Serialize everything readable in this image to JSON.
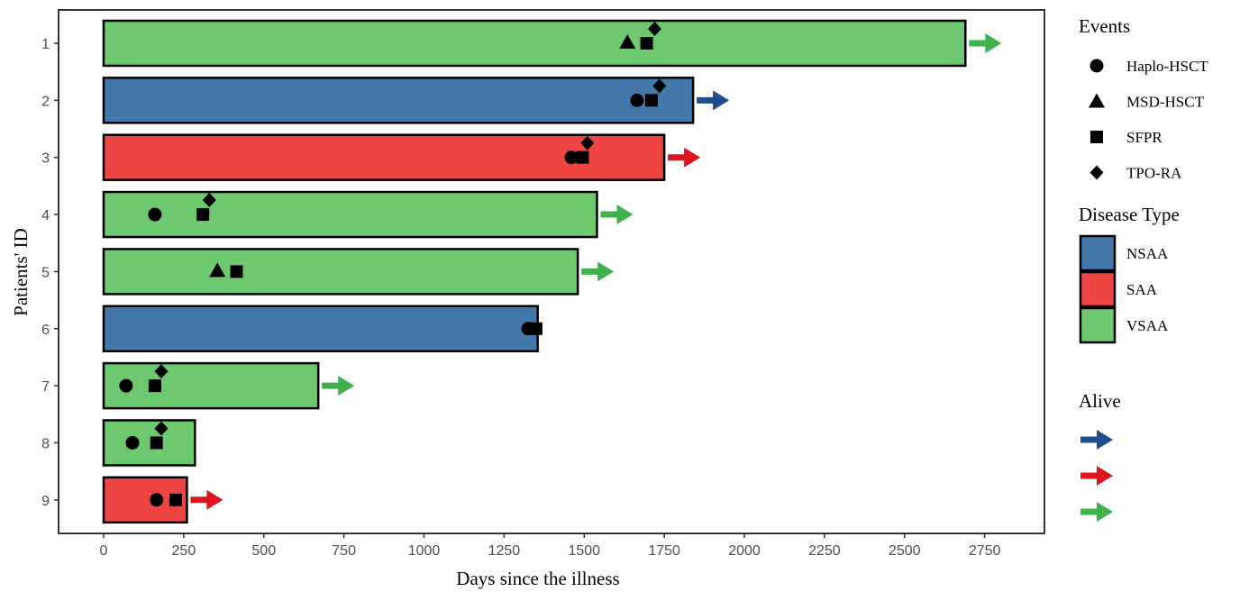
{
  "chart_data": {
    "type": "bar",
    "orientation": "horizontal",
    "xlabel": "Days since the illness",
    "ylabel": "Patients' ID",
    "xlim": [
      -140,
      2930
    ],
    "xticks": [
      0,
      250,
      500,
      750,
      1000,
      1250,
      1500,
      1750,
      2000,
      2250,
      2500,
      2750
    ],
    "categories": [
      "1",
      "2",
      "3",
      "4",
      "5",
      "6",
      "7",
      "8",
      "9"
    ],
    "colors": {
      "NSAA": "#4477AA",
      "SAA": "#EE4444",
      "VSAA": "#6DC870"
    },
    "alive_colors": {
      "NSAA": "#1F4E8C",
      "SAA": "#E0141E",
      "VSAA": "#3DB14A"
    },
    "grid": false,
    "legend_position": "right",
    "patients": [
      {
        "id": "1",
        "days": 2690,
        "type": "VSAA",
        "alive": true,
        "events": [
          {
            "event": "MSD-HSCT",
            "day": 1635
          },
          {
            "event": "SFPR",
            "day": 1695
          },
          {
            "event": "TPO-RA",
            "day": 1720
          }
        ]
      },
      {
        "id": "2",
        "days": 1840,
        "type": "NSAA",
        "alive": true,
        "events": [
          {
            "event": "Haplo-HSCT",
            "day": 1665
          },
          {
            "event": "SFPR",
            "day": 1710
          },
          {
            "event": "TPO-RA",
            "day": 1735
          }
        ]
      },
      {
        "id": "3",
        "days": 1750,
        "type": "SAA",
        "alive": true,
        "events": [
          {
            "event": "Haplo-HSCT",
            "day": 1460
          },
          {
            "event": "SFPR",
            "day": 1495
          },
          {
            "event": "TPO-RA",
            "day": 1510
          }
        ]
      },
      {
        "id": "4",
        "days": 1540,
        "type": "VSAA",
        "alive": true,
        "events": [
          {
            "event": "Haplo-HSCT",
            "day": 160
          },
          {
            "event": "SFPR",
            "day": 310
          },
          {
            "event": "TPO-RA",
            "day": 330
          }
        ]
      },
      {
        "id": "5",
        "days": 1480,
        "type": "VSAA",
        "alive": true,
        "events": [
          {
            "event": "MSD-HSCT",
            "day": 355
          },
          {
            "event": "SFPR",
            "day": 415
          }
        ]
      },
      {
        "id": "6",
        "days": 1355,
        "type": "NSAA",
        "alive": false,
        "events": [
          {
            "event": "Haplo-HSCT",
            "day": 1325
          },
          {
            "event": "SFPR",
            "day": 1350
          }
        ]
      },
      {
        "id": "7",
        "days": 670,
        "type": "VSAA",
        "alive": true,
        "events": [
          {
            "event": "Haplo-HSCT",
            "day": 70
          },
          {
            "event": "SFPR",
            "day": 160
          },
          {
            "event": "TPO-RA",
            "day": 180
          }
        ]
      },
      {
        "id": "8",
        "days": 285,
        "type": "VSAA",
        "alive": false,
        "events": [
          {
            "event": "Haplo-HSCT",
            "day": 90
          },
          {
            "event": "SFPR",
            "day": 165
          },
          {
            "event": "TPO-RA",
            "day": 180
          }
        ]
      },
      {
        "id": "9",
        "days": 260,
        "type": "SAA",
        "alive": true,
        "events": [
          {
            "event": "Haplo-HSCT",
            "day": 165
          },
          {
            "event": "SFPR",
            "day": 225
          }
        ]
      }
    ],
    "legend": {
      "events_title": "Events",
      "events": [
        {
          "label": "Haplo-HSCT",
          "shape": "circle"
        },
        {
          "label": "MSD-HSCT",
          "shape": "triangle"
        },
        {
          "label": "SFPR",
          "shape": "square"
        },
        {
          "label": "TPO-RA",
          "shape": "diamond"
        }
      ],
      "disease_title": "Disease Type",
      "disease_types": [
        "NSAA",
        "SAA",
        "VSAA"
      ],
      "alive_title": "Alive",
      "alive_arrows": [
        "NSAA",
        "SAA",
        "VSAA"
      ]
    }
  }
}
